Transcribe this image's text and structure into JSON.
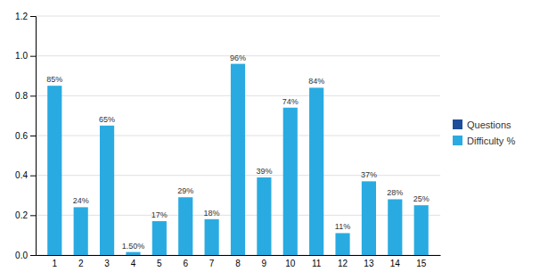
{
  "chart_data": {
    "type": "bar",
    "categories": [
      "1",
      "2",
      "3",
      "4",
      "5",
      "6",
      "7",
      "8",
      "9",
      "10",
      "11",
      "12",
      "13",
      "14",
      "15"
    ],
    "series": [
      {
        "name": "Questions",
        "color": "#1F4E9B",
        "values": [
          null,
          null,
          null,
          null,
          null,
          null,
          null,
          null,
          null,
          null,
          null,
          null,
          null,
          null,
          null
        ]
      },
      {
        "name": "Difficulty %",
        "color": "#29ABE2",
        "values": [
          0.85,
          0.24,
          0.65,
          0.015,
          0.17,
          0.29,
          0.18,
          0.96,
          0.39,
          0.74,
          0.84,
          0.11,
          0.37,
          0.28,
          0.25
        ],
        "value_labels": [
          "85%",
          "24%",
          "65%",
          "1.50%",
          "17%",
          "29%",
          "18%",
          "96%",
          "39%",
          "74%",
          "84%",
          "11%",
          "37%",
          "28%",
          "25%"
        ]
      }
    ],
    "ylim": [
      0,
      1.2
    ],
    "yticks": [
      {
        "value": 0,
        "label": "0.0"
      },
      0.2,
      0.4,
      0.6,
      0.8,
      {
        "value": 1.0,
        "label": "1.0"
      },
      1.2
    ],
    "grid": true,
    "data_labels": true,
    "legend": "right"
  }
}
